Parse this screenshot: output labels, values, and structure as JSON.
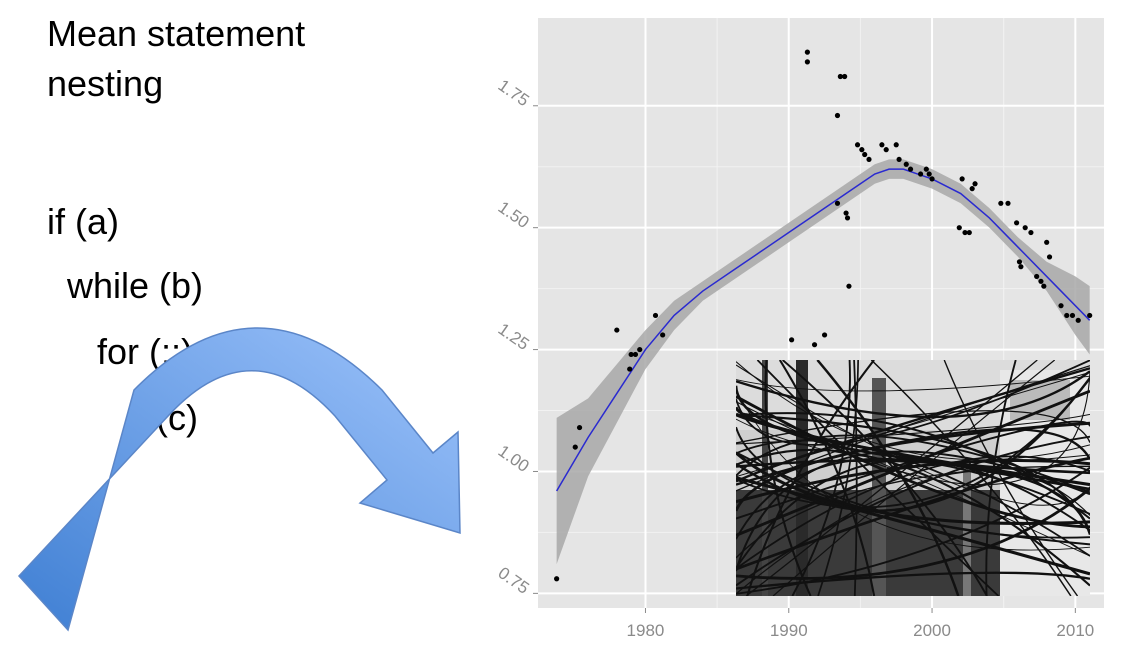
{
  "slide": {
    "title_line1": "Mean statement",
    "title_line2": "nesting",
    "code_lines": [
      "if (a)",
      "while (b)",
      "for (;;)",
      "if (c)"
    ]
  },
  "colors": {
    "panel_background": "#e5e5e5",
    "gridline": "#ffffff",
    "points": "#000000",
    "smooth_line": "#2a2ad0",
    "confidence_band": "#a8a8a8",
    "arrow_light": "#9dc3fb",
    "arrow_dark": "#3f7fd3"
  },
  "chart_data": {
    "type": "scatter",
    "title": "",
    "xlabel": "",
    "ylabel": "",
    "xlim": [
      1972.5,
      2012
    ],
    "ylim": [
      0.72,
      1.93
    ],
    "x_ticks": [
      1980,
      1990,
      2000,
      2010
    ],
    "y_ticks": [
      0.75,
      1.0,
      1.25,
      1.5,
      1.75
    ],
    "x_tick_labels": [
      "1980",
      "1990",
      "2000",
      "2010"
    ],
    "y_tick_labels": [
      "0.75",
      "1.00",
      "1.25",
      "1.50",
      "1.75"
    ],
    "grid": true,
    "points": [
      [
        1973.8,
        0.78
      ],
      [
        1975.1,
        1.05
      ],
      [
        1975.4,
        1.09
      ],
      [
        1978.0,
        1.29
      ],
      [
        1978.9,
        1.21
      ],
      [
        1979.0,
        1.24
      ],
      [
        1979.3,
        1.24
      ],
      [
        1979.6,
        1.25
      ],
      [
        1980.7,
        1.32
      ],
      [
        1981.2,
        1.28
      ],
      [
        1990.2,
        1.27
      ],
      [
        1991.3,
        1.84
      ],
      [
        1991.3,
        1.86
      ],
      [
        1991.8,
        1.26
      ],
      [
        1992.5,
        1.28
      ],
      [
        1993.4,
        1.73
      ],
      [
        1993.4,
        1.55
      ],
      [
        1993.6,
        1.81
      ],
      [
        1993.9,
        1.81
      ],
      [
        1994.0,
        1.53
      ],
      [
        1994.1,
        1.52
      ],
      [
        1994.2,
        1.38
      ],
      [
        1994.8,
        1.67
      ],
      [
        1995.1,
        1.66
      ],
      [
        1995.3,
        1.65
      ],
      [
        1995.6,
        1.64
      ],
      [
        1996.5,
        1.67
      ],
      [
        1996.8,
        1.66
      ],
      [
        1997.5,
        1.67
      ],
      [
        1997.7,
        1.64
      ],
      [
        1998.2,
        1.63
      ],
      [
        1998.5,
        1.62
      ],
      [
        1999.2,
        1.61
      ],
      [
        1999.6,
        1.62
      ],
      [
        1999.8,
        1.61
      ],
      [
        2000.0,
        1.6
      ],
      [
        2001.9,
        1.5
      ],
      [
        2002.1,
        1.6
      ],
      [
        2002.3,
        1.49
      ],
      [
        2002.6,
        1.49
      ],
      [
        2002.8,
        1.58
      ],
      [
        2003.0,
        1.59
      ],
      [
        2004.8,
        1.55
      ],
      [
        2005.3,
        1.55
      ],
      [
        2005.9,
        1.51
      ],
      [
        2006.1,
        1.43
      ],
      [
        2006.2,
        1.42
      ],
      [
        2006.5,
        1.5
      ],
      [
        2006.9,
        1.49
      ],
      [
        2007.3,
        1.4
      ],
      [
        2007.6,
        1.39
      ],
      [
        2007.8,
        1.38
      ],
      [
        2008.0,
        1.47
      ],
      [
        2008.2,
        1.44
      ],
      [
        2009.0,
        1.34
      ],
      [
        2009.4,
        1.32
      ],
      [
        2009.8,
        1.32
      ],
      [
        2010.2,
        1.31
      ],
      [
        2011.0,
        1.32
      ]
    ],
    "smooth": {
      "x": [
        1973.8,
        1976,
        1978,
        1980,
        1982,
        1984,
        1986,
        1988,
        1990,
        1992,
        1994,
        1995,
        1996,
        1997,
        1998,
        1999,
        2000,
        2002,
        2004,
        2006,
        2008,
        2010,
        2011
      ],
      "y": [
        0.96,
        1.07,
        1.16,
        1.25,
        1.32,
        1.37,
        1.41,
        1.45,
        1.49,
        1.53,
        1.57,
        1.59,
        1.61,
        1.62,
        1.62,
        1.61,
        1.6,
        1.57,
        1.52,
        1.46,
        1.4,
        1.34,
        1.31
      ],
      "lower": [
        0.81,
        0.99,
        1.1,
        1.21,
        1.29,
        1.35,
        1.39,
        1.43,
        1.47,
        1.51,
        1.55,
        1.57,
        1.59,
        1.6,
        1.6,
        1.59,
        1.58,
        1.55,
        1.5,
        1.44,
        1.37,
        1.28,
        1.24
      ],
      "upper": [
        1.11,
        1.15,
        1.22,
        1.29,
        1.35,
        1.39,
        1.43,
        1.47,
        1.51,
        1.55,
        1.59,
        1.61,
        1.63,
        1.64,
        1.64,
        1.63,
        1.62,
        1.59,
        1.54,
        1.48,
        1.43,
        1.4,
        1.38
      ]
    }
  },
  "inset_photo": {
    "icon": "tangled-power-lines-photo"
  }
}
